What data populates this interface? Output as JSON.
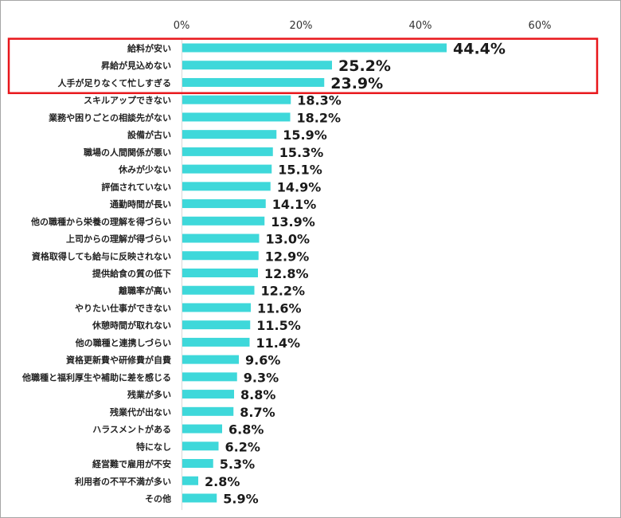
{
  "chart_data": {
    "type": "bar",
    "orientation": "horizontal",
    "xlim": [
      0,
      70
    ],
    "ticks": [
      {
        "value": 0,
        "label": "0%"
      },
      {
        "value": 20,
        "label": "20%"
      },
      {
        "value": 40,
        "label": "40%"
      },
      {
        "value": 60,
        "label": "60%"
      }
    ],
    "grid": false,
    "bar_color": "#3ED8DA",
    "highlight_color": "#E8161B",
    "highlight_top_n": 3,
    "categories": [
      "給料が安い",
      "昇給が見込めない",
      "人手が足りなくて忙しすぎる",
      "スキルアップできない",
      "業務や困りごとの相談先がない",
      "設備が古い",
      "職場の人間関係が悪い",
      "休みが少ない",
      "評価されていない",
      "通勤時間が長い",
      "他の職種から栄養の理解を得づらい",
      "上司からの理解が得づらい",
      "資格取得しても給与に反映されない",
      "提供給食の質の低下",
      "離職率が高い",
      "やりたい仕事ができない",
      "休憩時間が取れない",
      "他の職種と連携しづらい",
      "資格更新費や研修費が自費",
      "他職種と福利厚生や補助に差を感じる",
      "残業が多い",
      "残業代が出ない",
      "ハラスメントがある",
      "特になし",
      "経営難で雇用が不安",
      "利用者の不平不満が多い",
      "その他"
    ],
    "values": [
      44.4,
      25.2,
      23.9,
      18.3,
      18.2,
      15.9,
      15.3,
      15.1,
      14.9,
      14.1,
      13.9,
      13.0,
      12.9,
      12.8,
      12.2,
      11.6,
      11.5,
      11.4,
      9.6,
      9.3,
      8.8,
      8.7,
      6.8,
      6.2,
      5.3,
      2.8,
      5.9
    ],
    "value_labels": [
      "44.4%",
      "25.2%",
      "23.9%",
      "18.3%",
      "18.2%",
      "15.9%",
      "15.3%",
      "15.1%",
      "14.9%",
      "14.1%",
      "13.9%",
      "13.0%",
      "12.9%",
      "12.8%",
      "12.2%",
      "11.6%",
      "11.5%",
      "11.4%",
      "9.6%",
      "9.3%",
      "8.8%",
      "8.7%",
      "6.8%",
      "6.2%",
      "5.3%",
      "2.8%",
      "5.9%"
    ]
  }
}
